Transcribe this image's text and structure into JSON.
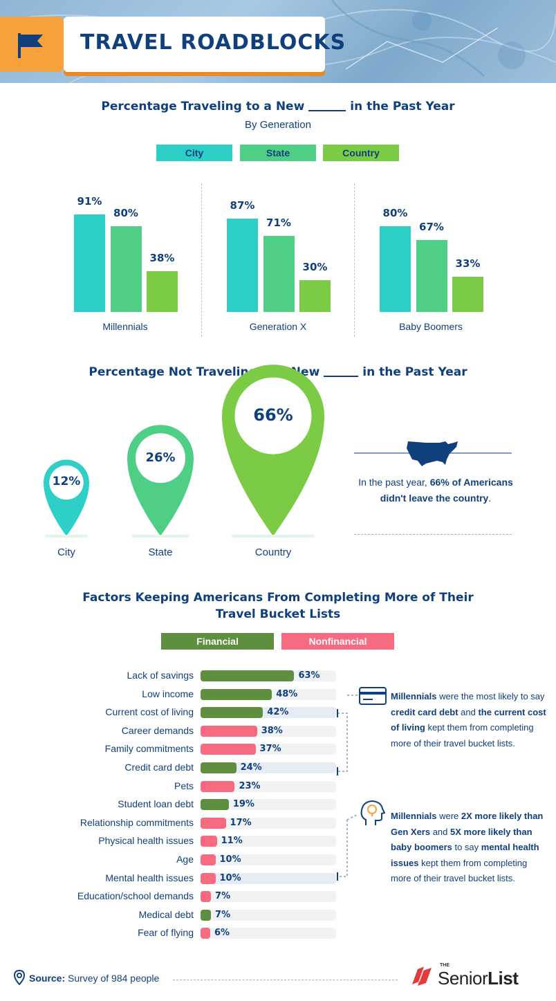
{
  "header": {
    "title": "TRAVEL ROADBLOCKS"
  },
  "section1": {
    "title_before": "Percentage Traveling to a New",
    "title_after": "in the Past Year",
    "subtitle": "By Generation",
    "legend": [
      "City",
      "State",
      "Country"
    ]
  },
  "section2": {
    "title_before": "Percentage Not Traveling to a New",
    "title_after": "in the Past Year",
    "pins": [
      {
        "label": "City",
        "value": "12%"
      },
      {
        "label": "State",
        "value": "26%"
      },
      {
        "label": "Country",
        "value": "66%"
      }
    ],
    "callout_1": "In the past year, ",
    "callout_bold": "66% of Americans didn't leave the country",
    "callout_2": "."
  },
  "section3": {
    "title_line1": "Factors Keeping Americans From Completing More of Their",
    "title_line2": "Travel Bucket Lists",
    "legend": [
      "Financial",
      "Nonfinancial"
    ],
    "note1": {
      "p1": "Millennials",
      "p2": " were the most likely to say ",
      "p3": "credit card debt",
      "p4": " and ",
      "p5": "the current cost of living",
      "p6": " kept them from completing more of their travel bucket lists."
    },
    "note2": {
      "p1": "Millennials",
      "p2": " were ",
      "p3": "2X more likely than Gen Xers",
      "p4": " and ",
      "p5": "5X more likely than baby boomers",
      "p6": " to say ",
      "p7": "mental health issues",
      "p8": " kept them from completing more of their travel bucket lists."
    }
  },
  "footer": {
    "source_label": "Source:",
    "source_text": "Survey of 984 people",
    "brand_the": "THE",
    "brand_senior": "Senior",
    "brand_list": "List"
  },
  "colors": {
    "city": "#2ecfc6",
    "state": "#4fcf86",
    "country": "#7ccb45",
    "financial": "#5e8f3e",
    "nonfinancial": "#f86a80",
    "navy": "#103f7d",
    "accent": "#f6a13c"
  },
  "icons": [
    "flag-icon",
    "us-map-icon",
    "credit-card-icon",
    "brain-lightbulb-icon",
    "location-pin-icon",
    "book-logo-icon"
  ],
  "chart_data": [
    {
      "type": "bar",
      "title": "Percentage Traveling to a New ______ in the Past Year",
      "subtitle": "By Generation",
      "categories": [
        "Millennials",
        "Generation X",
        "Baby Boomers"
      ],
      "series": [
        {
          "name": "City",
          "values": [
            91,
            87,
            80
          ]
        },
        {
          "name": "State",
          "values": [
            80,
            71,
            67
          ]
        },
        {
          "name": "Country",
          "values": [
            38,
            30,
            33
          ]
        }
      ],
      "ylim": [
        0,
        100
      ],
      "value_suffix": "%"
    },
    {
      "type": "bar",
      "title": "Percentage Not Traveling to a New ______ in the Past Year",
      "categories": [
        "City",
        "State",
        "Country"
      ],
      "values": [
        12,
        26,
        66
      ],
      "value_suffix": "%"
    },
    {
      "type": "bar",
      "orientation": "horizontal",
      "title": "Factors Keeping Americans From Completing More of Their Travel Bucket Lists",
      "legend": [
        "Financial",
        "Nonfinancial"
      ],
      "xlim": [
        0,
        100
      ],
      "value_suffix": "%",
      "items": [
        {
          "label": "Lack of savings",
          "value": 63,
          "group": "Financial"
        },
        {
          "label": "Low income",
          "value": 48,
          "group": "Financial"
        },
        {
          "label": "Current cost of living",
          "value": 42,
          "group": "Financial"
        },
        {
          "label": "Career demands",
          "value": 38,
          "group": "Nonfinancial"
        },
        {
          "label": "Family commitments",
          "value": 37,
          "group": "Nonfinancial"
        },
        {
          "label": "Credit card debt",
          "value": 24,
          "group": "Financial"
        },
        {
          "label": "Pets",
          "value": 23,
          "group": "Nonfinancial"
        },
        {
          "label": "Student loan debt",
          "value": 19,
          "group": "Financial"
        },
        {
          "label": "Relationship commitments",
          "value": 17,
          "group": "Nonfinancial"
        },
        {
          "label": "Physical health issues",
          "value": 11,
          "group": "Nonfinancial"
        },
        {
          "label": "Age",
          "value": 10,
          "group": "Nonfinancial"
        },
        {
          "label": "Mental health issues",
          "value": 10,
          "group": "Nonfinancial"
        },
        {
          "label": "Education/school demands",
          "value": 7,
          "group": "Nonfinancial"
        },
        {
          "label": "Medical debt",
          "value": 7,
          "group": "Financial"
        },
        {
          "label": "Fear of flying",
          "value": 6,
          "group": "Nonfinancial"
        }
      ]
    }
  ]
}
